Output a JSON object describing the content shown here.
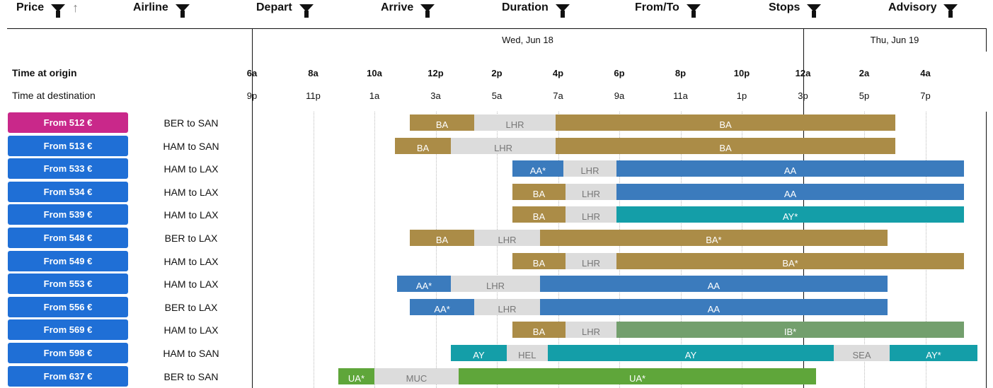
{
  "headers": [
    {
      "label": "Price",
      "sort": "ascending"
    },
    {
      "label": "Airline"
    },
    {
      "label": "Depart"
    },
    {
      "label": "Arrive"
    },
    {
      "label": "Duration"
    },
    {
      "label": "From/To"
    },
    {
      "label": "Stops"
    },
    {
      "label": "Advisory"
    }
  ],
  "dates": [
    "Wed, Jun 18",
    "Thu, Jun 19"
  ],
  "axis": {
    "origin_label": "Time at origin",
    "dest_label": "Time at destination",
    "origin_ticks": [
      "6a",
      "8a",
      "10a",
      "12p",
      "2p",
      "4p",
      "6p",
      "8p",
      "10p",
      "12a",
      "2a",
      "4a"
    ],
    "dest_ticks": [
      "9p",
      "11p",
      "1a",
      "3a",
      "5a",
      "7a",
      "9a",
      "11a",
      "1p",
      "3p",
      "5p",
      "7p"
    ],
    "start_hour_note": "hours measured from 6a Wed"
  },
  "colors": {
    "BA": "#ab8c47",
    "AA": "#3b7bbd",
    "AY": "#149ea8",
    "IB": "#739f6d",
    "UA": "#5fa63a",
    "layover": "#dcdcdc",
    "price": "#1f6fd6",
    "price_selected": "#c9288a"
  },
  "flights": [
    {
      "price": "From 512 €",
      "route": "BER to SAN",
      "selected": true,
      "segs": [
        [
          "BA",
          "BA",
          5.16,
          7.26
        ],
        [
          "LHR",
          "layover",
          7.26,
          9.92
        ],
        [
          "BA",
          "BA",
          9.92,
          21.02
        ]
      ]
    },
    {
      "price": "From 513 €",
      "route": "HAM to SAN",
      "segs": [
        [
          "BA",
          "BA",
          4.67,
          6.5
        ],
        [
          "LHR",
          "layover",
          6.5,
          9.92
        ],
        [
          "BA",
          "BA",
          9.92,
          21.02
        ]
      ]
    },
    {
      "price": "From 533 €",
      "route": "HAM to LAX",
      "segs": [
        [
          "AA*",
          "AA",
          8.51,
          10.17
        ],
        [
          "LHR",
          "layover",
          10.17,
          11.91
        ],
        [
          "AA",
          "AA",
          11.91,
          23.26
        ]
      ]
    },
    {
      "price": "From 534 €",
      "route": "HAM to LAX",
      "segs": [
        [
          "BA",
          "BA",
          8.51,
          10.24
        ],
        [
          "LHR",
          "layover",
          10.24,
          11.91
        ],
        [
          "AA",
          "AA",
          11.91,
          23.26
        ]
      ]
    },
    {
      "price": "From 539 €",
      "route": "HAM to LAX",
      "segs": [
        [
          "BA",
          "BA",
          8.51,
          10.24
        ],
        [
          "LHR",
          "layover",
          10.24,
          11.91
        ],
        [
          "AY*",
          "AY",
          11.91,
          23.26
        ]
      ]
    },
    {
      "price": "From 548 €",
      "route": "BER to LAX",
      "segs": [
        [
          "BA",
          "BA",
          5.16,
          7.26
        ],
        [
          "LHR",
          "layover",
          7.26,
          9.41
        ],
        [
          "BA*",
          "BA",
          9.41,
          20.76
        ]
      ]
    },
    {
      "price": "From 549 €",
      "route": "HAM to LAX",
      "segs": [
        [
          "BA",
          "BA",
          8.51,
          10.24
        ],
        [
          "LHR",
          "layover",
          10.24,
          11.91
        ],
        [
          "BA*",
          "BA",
          11.91,
          23.26
        ]
      ]
    },
    {
      "price": "From 553 €",
      "route": "HAM to LAX",
      "segs": [
        [
          "AA*",
          "AA",
          4.74,
          6.5
        ],
        [
          "LHR",
          "layover",
          6.5,
          9.41
        ],
        [
          "AA",
          "AA",
          9.41,
          20.76
        ]
      ]
    },
    {
      "price": "From 556 €",
      "route": "BER to LAX",
      "segs": [
        [
          "AA*",
          "AA",
          5.16,
          7.26
        ],
        [
          "LHR",
          "layover",
          7.26,
          9.41
        ],
        [
          "AA",
          "AA",
          9.41,
          20.76
        ]
      ]
    },
    {
      "price": "From 569 €",
      "route": "HAM to LAX",
      "segs": [
        [
          "BA",
          "BA",
          8.51,
          10.24
        ],
        [
          "LHR",
          "layover",
          10.24,
          11.91
        ],
        [
          "IB*",
          "IB",
          11.91,
          23.26
        ]
      ]
    },
    {
      "price": "From 598 €",
      "route": "HAM to SAN",
      "segs": [
        [
          "AY",
          "AY",
          6.5,
          8.32
        ],
        [
          "HEL",
          "layover",
          8.32,
          9.66
        ],
        [
          "AY",
          "AY",
          9.66,
          19.01
        ],
        [
          "SEA",
          "layover",
          19.01,
          20.83
        ],
        [
          "AY*",
          "AY",
          20.83,
          23.7
        ]
      ]
    },
    {
      "price": "From 637 €",
      "route": "BER to SAN",
      "segs": [
        [
          "UA*",
          "UA",
          2.82,
          4.0
        ],
        [
          "MUC",
          "layover",
          4.0,
          6.75
        ],
        [
          "UA*",
          "UA",
          6.75,
          18.43
        ]
      ]
    }
  ]
}
